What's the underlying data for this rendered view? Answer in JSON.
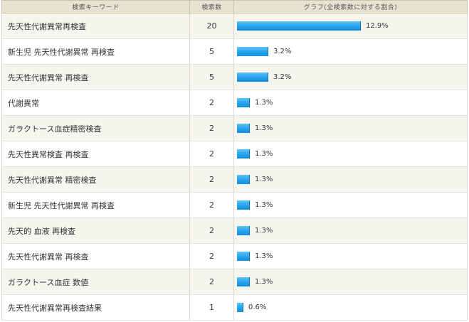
{
  "headers": {
    "keyword": "検索キーワード",
    "count": "検索数",
    "graph": "グラフ(全検索数に対する割合)"
  },
  "rows": [
    {
      "keyword": "先天性代謝異常再検査",
      "count": "20",
      "percent_label": "12.9%",
      "percent": 12.9
    },
    {
      "keyword": "新生児 先天性代謝異常 再検査",
      "count": "5",
      "percent_label": "3.2%",
      "percent": 3.2
    },
    {
      "keyword": "先天性代謝異常 再検査",
      "count": "5",
      "percent_label": "3.2%",
      "percent": 3.2
    },
    {
      "keyword": "代謝異常",
      "count": "2",
      "percent_label": "1.3%",
      "percent": 1.3
    },
    {
      "keyword": "ガラクトース血症精密検査",
      "count": "2",
      "percent_label": "1.3%",
      "percent": 1.3
    },
    {
      "keyword": "先天性異常検査 再検査",
      "count": "2",
      "percent_label": "1.3%",
      "percent": 1.3
    },
    {
      "keyword": "先天性代謝異常 精密検査",
      "count": "2",
      "percent_label": "1.3%",
      "percent": 1.3
    },
    {
      "keyword": "新生児 先天性代謝異常 再検査",
      "count": "2",
      "percent_label": "1.3%",
      "percent": 1.3
    },
    {
      "keyword": "先天的 血液 再検査",
      "count": "2",
      "percent_label": "1.3%",
      "percent": 1.3
    },
    {
      "keyword": "先天性代謝異常 再検査",
      "count": "2",
      "percent_label": "1.3%",
      "percent": 1.3
    },
    {
      "keyword": "ガラクトース血症 数値",
      "count": "2",
      "percent_label": "1.3%",
      "percent": 1.3
    },
    {
      "keyword": "先天性代謝異常再検査結果",
      "count": "1",
      "percent_label": "0.6%",
      "percent": 0.6
    }
  ],
  "colors": {
    "bar": "#2aa5ec",
    "header_bg": "#e7e3d3",
    "row_alt_bg": "#f6f5ee"
  }
}
